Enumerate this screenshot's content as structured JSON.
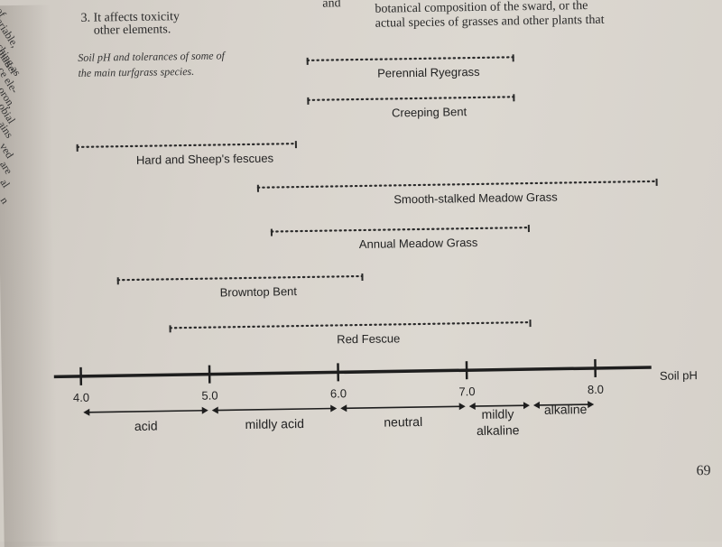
{
  "left_fragments": [
    "of",
    "ariable,",
    "ching as",
    "matter",
    "ce ele-",
    "oron,",
    "obial",
    "ains",
    "ved",
    "are",
    "al",
    "n"
  ],
  "top": {
    "left_line1": "3. It affects toxicity",
    "left_line2": "other elements.",
    "right_line1": "botanical composition of the sward, or the",
    "right_line2": "actual species of grasses and other plants that",
    "right_fragment": "and"
  },
  "caption_line1": "Soil pH and tolerances of some of",
  "caption_line2": "the main turfgrass species.",
  "page_number": "69",
  "chart_data": {
    "type": "range",
    "xlabel": "Soil pH",
    "xlim": [
      3.98,
      9.0
    ],
    "ticks": [
      {
        "value": 4.0,
        "label": "4.0"
      },
      {
        "value": 5.0,
        "label": "5.0"
      },
      {
        "value": 6.0,
        "label": "6.0"
      },
      {
        "value": 7.0,
        "label": "7.0"
      },
      {
        "value": 8.0,
        "label": "8.0"
      }
    ],
    "series": [
      {
        "name": "Perennial Ryegrass",
        "start": 5.8,
        "end": 7.4
      },
      {
        "name": "Creeping Bent",
        "start": 5.8,
        "end": 7.4
      },
      {
        "name": "Hard and Sheep's fescues",
        "start": 4.0,
        "end": 5.7
      },
      {
        "name": "Smooth-stalked Meadow Grass",
        "start": 5.4,
        "end": 8.5
      },
      {
        "name": "Annual Meadow Grass",
        "start": 5.5,
        "end": 7.5
      },
      {
        "name": "Browntop Bent",
        "start": 4.3,
        "end": 6.2
      },
      {
        "name": "Red Fescue",
        "start": 4.7,
        "end": 7.5
      }
    ],
    "ranges": [
      {
        "label": "acid",
        "start": 4.0,
        "end": 5.0
      },
      {
        "label": "mildly acid",
        "start": 5.0,
        "end": 6.0
      },
      {
        "label": "neutral",
        "start": 6.0,
        "end": 7.0
      },
      {
        "label": "mildly alkaline",
        "start": 7.0,
        "end": 7.5
      },
      {
        "label": "alkaline",
        "start": 7.5,
        "end": 8.0
      }
    ]
  }
}
